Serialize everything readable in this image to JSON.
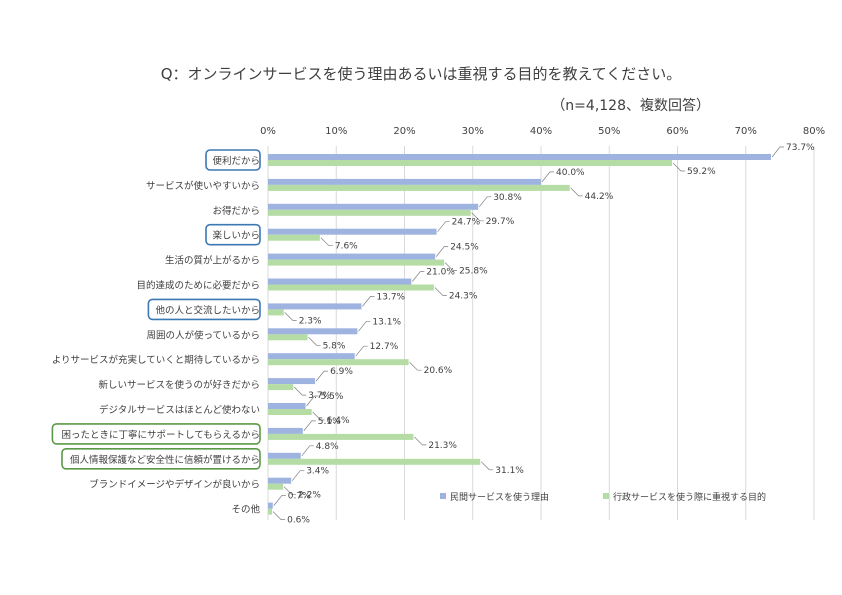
{
  "chart_data": {
    "type": "bar",
    "orientation": "horizontal",
    "title": "Q：オンラインサービスを使う理由あるいは重視する目的を教えてください。",
    "subtitle": "（n=4,128、複数回答）",
    "xlim": [
      0,
      80
    ],
    "x_ticks": [
      "0%",
      "10%",
      "20%",
      "30%",
      "40%",
      "50%",
      "60%",
      "70%",
      "80%"
    ],
    "grid": true,
    "legend_position": "bottom-right",
    "categories": [
      "便利だから",
      "サービスが使いやすいから",
      "お得だから",
      "楽しいから",
      "生活の質が上がるから",
      "目的達成のために必要だから",
      "他の人と交流したいから",
      "周囲の人が使っているから",
      "よりサービスが充実していくと期待しているから",
      "新しいサービスを使うのが好きだから",
      "デジタルサービスはほとんど使わない",
      "困ったときに丁寧にサポートしてもらえるから",
      "個人情報保護など安全性に信頼が置けるから",
      "ブランドイメージやデザインが良いから",
      "その他"
    ],
    "highlighted_blue": [
      0,
      3,
      6
    ],
    "highlighted_green": [
      11,
      12
    ],
    "series": [
      {
        "name": "民間サービスを使う理由",
        "color": "#9fb3e0",
        "values": [
          73.7,
          40.0,
          30.8,
          24.7,
          24.5,
          21.0,
          13.7,
          13.1,
          12.7,
          6.9,
          5.5,
          5.1,
          4.8,
          3.4,
          0.7
        ],
        "labels": [
          "73.7%",
          "40.0%",
          "30.8%",
          "24.7%",
          "24.5%",
          "21.0%",
          "13.7%",
          "13.1%",
          "12.7%",
          "6.9%",
          "5.5%",
          "5.1%",
          "4.8%",
          "3.4%",
          "0.7%"
        ]
      },
      {
        "name": "行政サービスを使う際に重視する目的",
        "color": "#b4dca4",
        "values": [
          59.2,
          44.2,
          29.7,
          7.6,
          25.8,
          24.3,
          2.3,
          5.8,
          20.6,
          3.7,
          6.4,
          21.3,
          31.1,
          2.2,
          0.6
        ],
        "labels": [
          "59.2%",
          "44.2%",
          "29.7%",
          "7.6%",
          "25.8%",
          "24.3%",
          "2.3%",
          "5.8%",
          "20.6%",
          "3.7%",
          "6.4%",
          "21.3%",
          "31.1%",
          "2.2%",
          "0.6%"
        ]
      }
    ]
  }
}
